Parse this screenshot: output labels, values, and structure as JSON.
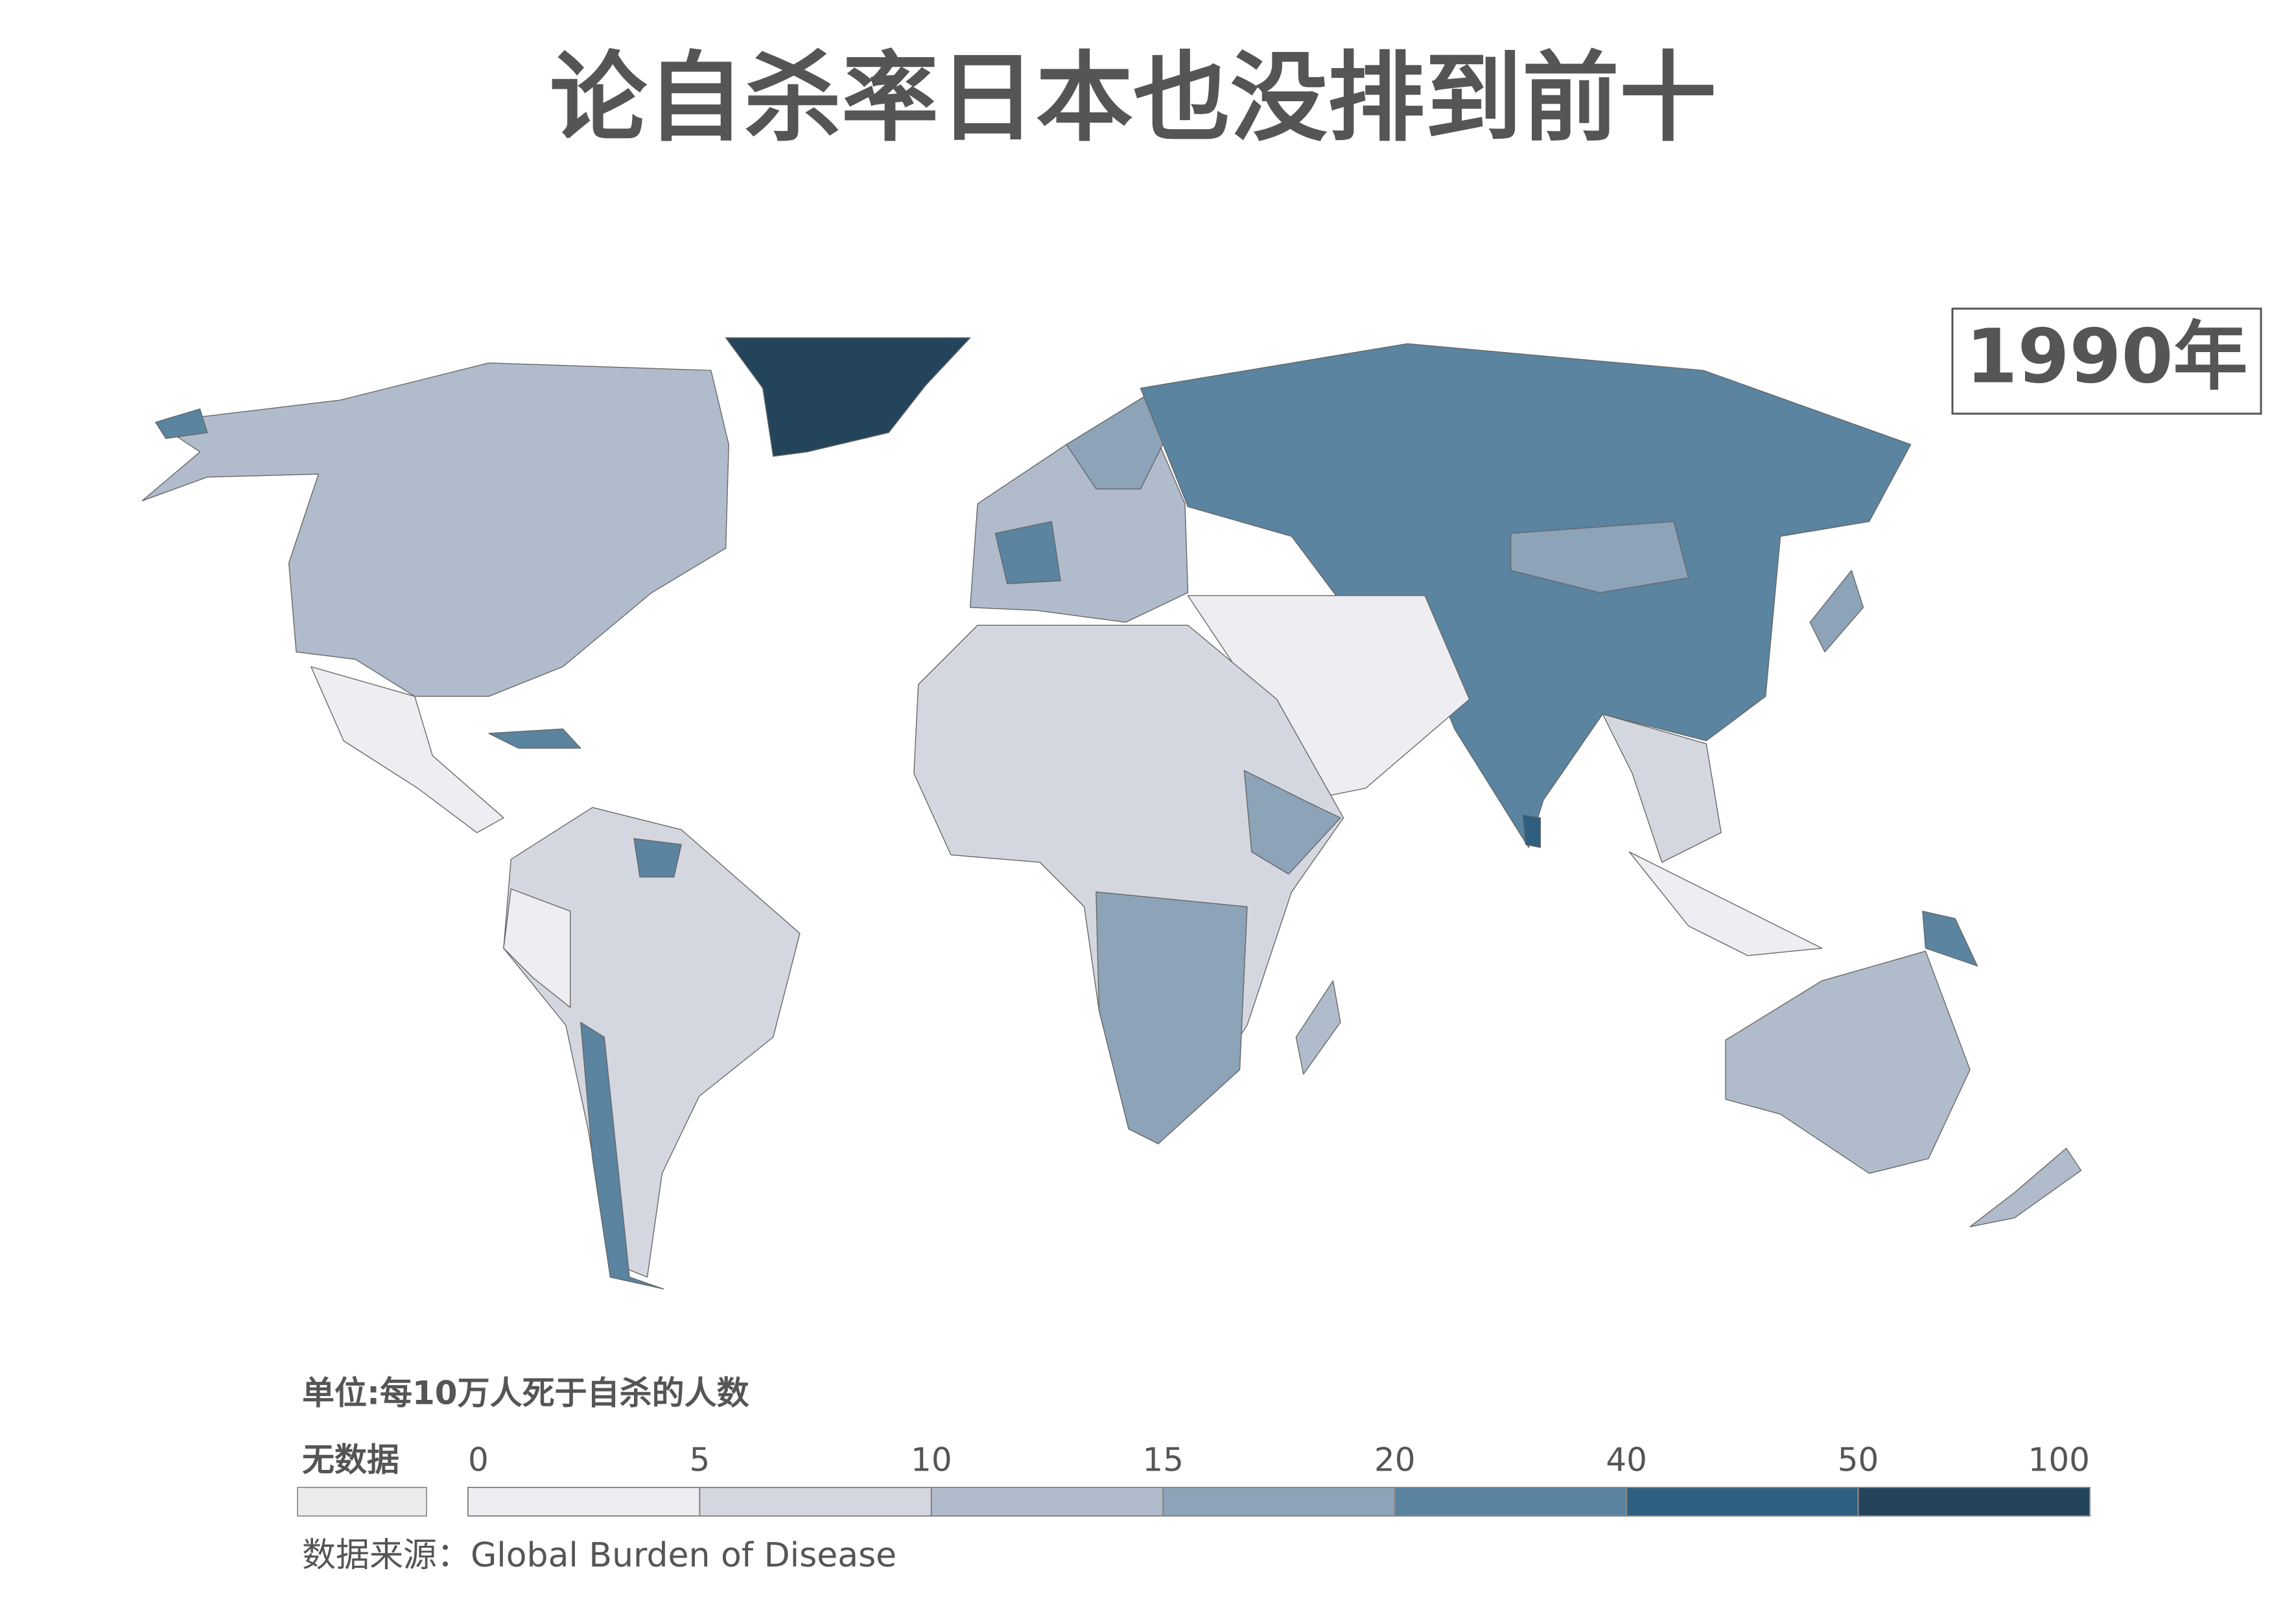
{
  "title": "论自杀率日本也没排到前十",
  "year": "1990年",
  "legend": {
    "unit": "单位:每10万人死于自杀的人数",
    "no_data": "无数据",
    "no_data_color": "#ececec",
    "ticks": [
      0,
      5,
      10,
      15,
      20,
      40,
      50,
      100
    ],
    "colors": [
      "#ededf2",
      "#d5d7e0",
      "#b0bccb",
      "#8ca3b8",
      "#5a84a0",
      "#2f5f80",
      "#24445c"
    ]
  },
  "source": "数据来源：Global Burden of Disease"
}
